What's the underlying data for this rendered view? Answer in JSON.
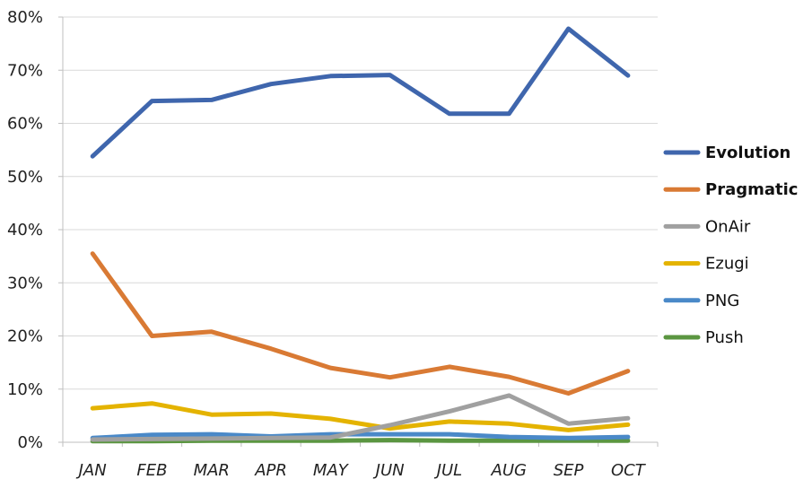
{
  "chart_data": {
    "type": "line",
    "categories": [
      "JAN",
      "FEB",
      "MAR",
      "APR",
      "MAY",
      "JUN",
      "JUL",
      "AUG",
      "SEP",
      "OCT"
    ],
    "ylim": [
      0,
      80
    ],
    "y_ticks": [
      "0%",
      "10%",
      "20%",
      "30%",
      "40%",
      "50%",
      "60%",
      "70%",
      "80%"
    ],
    "grid": true,
    "legend_position": "right",
    "series": [
      {
        "name": "Evolution",
        "color": "#3F66AD",
        "bold": true,
        "values": [
          53.8,
          64.2,
          64.4,
          67.4,
          68.9,
          69.1,
          61.8,
          61.8,
          77.8,
          69.0
        ]
      },
      {
        "name": "Pragmatic",
        "color": "#D97A34",
        "bold": true,
        "values": [
          35.5,
          20.0,
          20.8,
          17.6,
          14.0,
          12.2,
          14.2,
          12.3,
          9.2,
          13.4
        ]
      },
      {
        "name": "OnAir",
        "color": "#A0A0A0",
        "bold": false,
        "values": [
          0.5,
          0.6,
          0.7,
          0.8,
          0.9,
          3.2,
          5.8,
          8.8,
          3.5,
          4.5
        ]
      },
      {
        "name": "Ezugi",
        "color": "#E4B300",
        "bold": false,
        "values": [
          6.4,
          7.3,
          5.2,
          5.4,
          4.4,
          2.6,
          3.9,
          3.5,
          2.3,
          3.3
        ]
      },
      {
        "name": "PNG",
        "color": "#4A89C8",
        "bold": false,
        "values": [
          0.8,
          1.4,
          1.5,
          1.1,
          1.5,
          1.5,
          1.5,
          1.0,
          0.8,
          1.0
        ]
      },
      {
        "name": "Push",
        "color": "#5B9641",
        "bold": false,
        "values": [
          0.2,
          0.2,
          0.3,
          0.3,
          0.3,
          0.4,
          0.3,
          0.3,
          0.3,
          0.3
        ]
      }
    ]
  }
}
